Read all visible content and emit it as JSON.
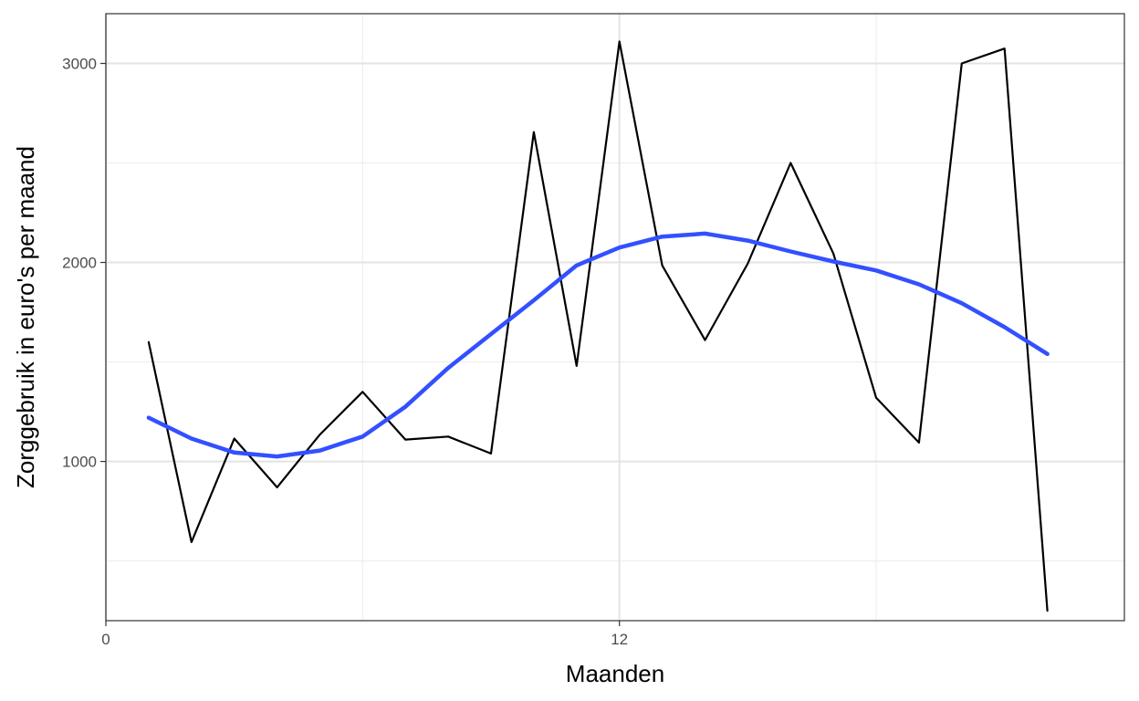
{
  "chart_data": {
    "type": "line",
    "xlabel": "Maanden",
    "ylabel": "Zorggebruik in euro's per maand",
    "xlim": [
      0,
      23.8
    ],
    "ylim": [
      200,
      3250
    ],
    "x_ticks": [
      0,
      12
    ],
    "x_tick_labels": [
      "0",
      "12"
    ],
    "x_minor_grid": [
      6,
      18
    ],
    "y_ticks": [
      1000,
      2000,
      3000
    ],
    "y_tick_labels": [
      "1000",
      "2000",
      "3000"
    ],
    "y_minor_grid": [
      500,
      1500,
      2500
    ],
    "grid": true,
    "series": [
      {
        "style": "raw",
        "color": "#000000",
        "x": [
          1,
          2,
          3,
          4,
          5,
          6,
          7,
          8,
          9,
          10,
          11,
          12,
          13,
          14,
          15,
          16,
          17,
          18,
          19,
          20,
          21,
          22
        ],
        "y": [
          1600,
          595,
          1115,
          870,
          1135,
          1350,
          1110,
          1125,
          1040,
          2655,
          1480,
          3110,
          1985,
          1610,
          1995,
          2500,
          2045,
          1320,
          1095,
          3000,
          3075,
          250
        ]
      },
      {
        "style": "smooth",
        "color": "#3350ff",
        "x": [
          1,
          2,
          3,
          4,
          5,
          6,
          7,
          8,
          9,
          10,
          11,
          12,
          13,
          14,
          15,
          16,
          17,
          18,
          19,
          20,
          21,
          22
        ],
        "y": [
          1220,
          1115,
          1045,
          1025,
          1055,
          1125,
          1275,
          1470,
          1640,
          1810,
          1985,
          2075,
          2130,
          2145,
          2110,
          2055,
          2005,
          1960,
          1890,
          1795,
          1675,
          1540
        ]
      }
    ]
  }
}
